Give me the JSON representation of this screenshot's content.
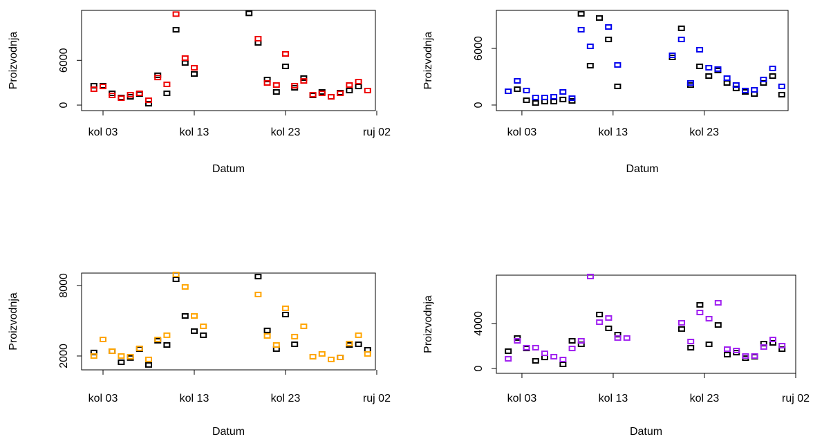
{
  "chart_data": [
    {
      "type": "scatter",
      "x_label": "Datum",
      "y_label": "Proizvodnja",
      "x": [
        2,
        3,
        4,
        5,
        6,
        7,
        8,
        9,
        10,
        11,
        12,
        13,
        19,
        20,
        21,
        22,
        23,
        24,
        25,
        26,
        27,
        28,
        29,
        30,
        31,
        32
      ],
      "series": [
        {
          "color": "#000000",
          "values": [
            2600,
            2600,
            1580,
            1020,
            1110,
            1480,
            190,
            4000,
            1580,
            10100,
            5650,
            4170,
            12300,
            8340,
            3430,
            1760,
            5190,
            2320,
            3620,
            1300,
            1760,
            1110,
            1670,
            1950,
            2500,
            null
          ]
        },
        {
          "color": "#ee0000",
          "values": [
            2130,
            2500,
            1300,
            930,
            1390,
            1580,
            650,
            3700,
            2780,
            12200,
            6300,
            5000,
            null,
            8900,
            2970,
            2690,
            6860,
            2600,
            3240,
            1390,
            1580,
            1110,
            1580,
            2690,
            3150,
            1950
          ]
        }
      ],
      "xlim": [
        0.65,
        32.85
      ],
      "xticks": [
        {
          "value": 3,
          "label": "kol 03"
        },
        {
          "value": 13,
          "label": "kol 13"
        },
        {
          "value": 23,
          "label": "kol 23"
        },
        {
          "value": 33,
          "label": "ruj 02"
        }
      ],
      "ylim": [
        -740,
        12700
      ],
      "yticks": [
        0,
        6000
      ]
    },
    {
      "type": "scatter",
      "x_label": "Datum",
      "y_label": "Proizvodnja",
      "x": [
        1.5,
        2.5,
        3.5,
        4.5,
        5.5,
        6.5,
        7.5,
        8.5,
        9.5,
        10.5,
        11.5,
        12.5,
        13.5,
        19.5,
        20.5,
        21.5,
        22.5,
        23.5,
        24.5,
        25.5,
        26.5,
        27.5,
        28.5,
        29.5,
        30.5,
        31.5
      ],
      "series": [
        {
          "color": "#000000",
          "values": [
            1460,
            1680,
            510,
            220,
            370,
            370,
            590,
            440,
            9660,
            4170,
            9220,
            6950,
            1980,
            5050,
            8130,
            2120,
            4100,
            3070,
            3660,
            2340,
            1760,
            1390,
            1170,
            2340,
            3070,
            1100
          ]
        },
        {
          "color": "#0000ee",
          "values": [
            1460,
            2560,
            1540,
            800,
            800,
            880,
            1390,
            730,
            7980,
            6220,
            null,
            8270,
            4250,
            5270,
            6950,
            2340,
            5860,
            3950,
            3810,
            2850,
            2120,
            1540,
            1610,
            2710,
            3880,
            1980
          ]
        }
      ],
      "xlim": [
        0.2,
        32.2
      ],
      "xticks": [
        {
          "value": 3,
          "label": "kol 03"
        },
        {
          "value": 13,
          "label": "kol 13"
        },
        {
          "value": 23,
          "label": "kol 23"
        }
      ],
      "ylim": [
        -590,
        10030
      ],
      "yticks": [
        0,
        6000
      ]
    },
    {
      "type": "scatter",
      "x_label": "Datum",
      "y_label": "Proizvodnja",
      "x": [
        2,
        3,
        4,
        5,
        6,
        7,
        8,
        9,
        10,
        11,
        12,
        13,
        14,
        20,
        21,
        22,
        23,
        24,
        25,
        26,
        27,
        28,
        29,
        30,
        31,
        32
      ],
      "series": [
        {
          "color": "#000000",
          "values": [
            2300,
            3410,
            2410,
            1470,
            1830,
            2590,
            1240,
            3300,
            2940,
            8530,
            5410,
            4120,
            3770,
            8760,
            4180,
            2590,
            5530,
            3000,
            null,
            null,
            null,
            null,
            1880,
            2940,
            3000,
            2530
          ]
        },
        {
          "color": "#ffa500",
          "values": [
            2000,
            3410,
            2410,
            2000,
            1940,
            2650,
            1710,
            3410,
            3770,
            8940,
            7880,
            5410,
            4530,
            7240,
            3710,
            2940,
            6060,
            3650,
            4530,
            1940,
            2180,
            1710,
            1880,
            3060,
            3770,
            2180
          ]
        }
      ],
      "xlim": [
        0.65,
        32.85
      ],
      "xticks": [
        {
          "value": 3,
          "label": "kol 03"
        },
        {
          "value": 13,
          "label": "kol 13"
        },
        {
          "value": 23,
          "label": "kol 23"
        },
        {
          "value": 33,
          "label": "ruj 02"
        }
      ],
      "ylim": [
        820,
        9060
      ],
      "yticks": [
        2000,
        8000
      ]
    },
    {
      "type": "scatter",
      "x_label": "Datum",
      "y_label": "Proizvodnja",
      "x": [
        1.5,
        2.5,
        3.5,
        4.5,
        5.5,
        6.5,
        7.5,
        8.5,
        9.5,
        10.5,
        11.5,
        12.5,
        13.5,
        14.5,
        20.5,
        21.5,
        22.5,
        23.5,
        24.5,
        25.5,
        26.5,
        27.5,
        28.5,
        29.5,
        30.5,
        31.5
      ],
      "series": [
        {
          "color": "#000000",
          "values": [
            1540,
            2710,
            1780,
            680,
            980,
            null,
            370,
            2460,
            2150,
            null,
            4800,
            3570,
            3010,
            null,
            3510,
            1850,
            5660,
            2150,
            3870,
            1230,
            1410,
            920,
            1050,
            2210,
            2280,
            1720
          ]
        },
        {
          "color": "#a020f0",
          "values": [
            860,
            2460,
            1850,
            1850,
            1350,
            1050,
            800,
            1780,
            2460,
            8180,
            4120,
            4490,
            2710,
            2710,
            4060,
            2400,
            4980,
            4430,
            5840,
            1720,
            1600,
            1110,
            1110,
            1910,
            2580,
            2030
          ]
        }
      ],
      "xlim": [
        0.2,
        33
      ],
      "xticks": [
        {
          "value": 3,
          "label": "kol 03"
        },
        {
          "value": 13,
          "label": "kol 13"
        },
        {
          "value": 23,
          "label": "kol 23"
        },
        {
          "value": 33,
          "label": "ruj 02"
        }
      ],
      "ylim": [
        -430,
        8300
      ],
      "yticks": [
        0,
        4000
      ]
    }
  ]
}
